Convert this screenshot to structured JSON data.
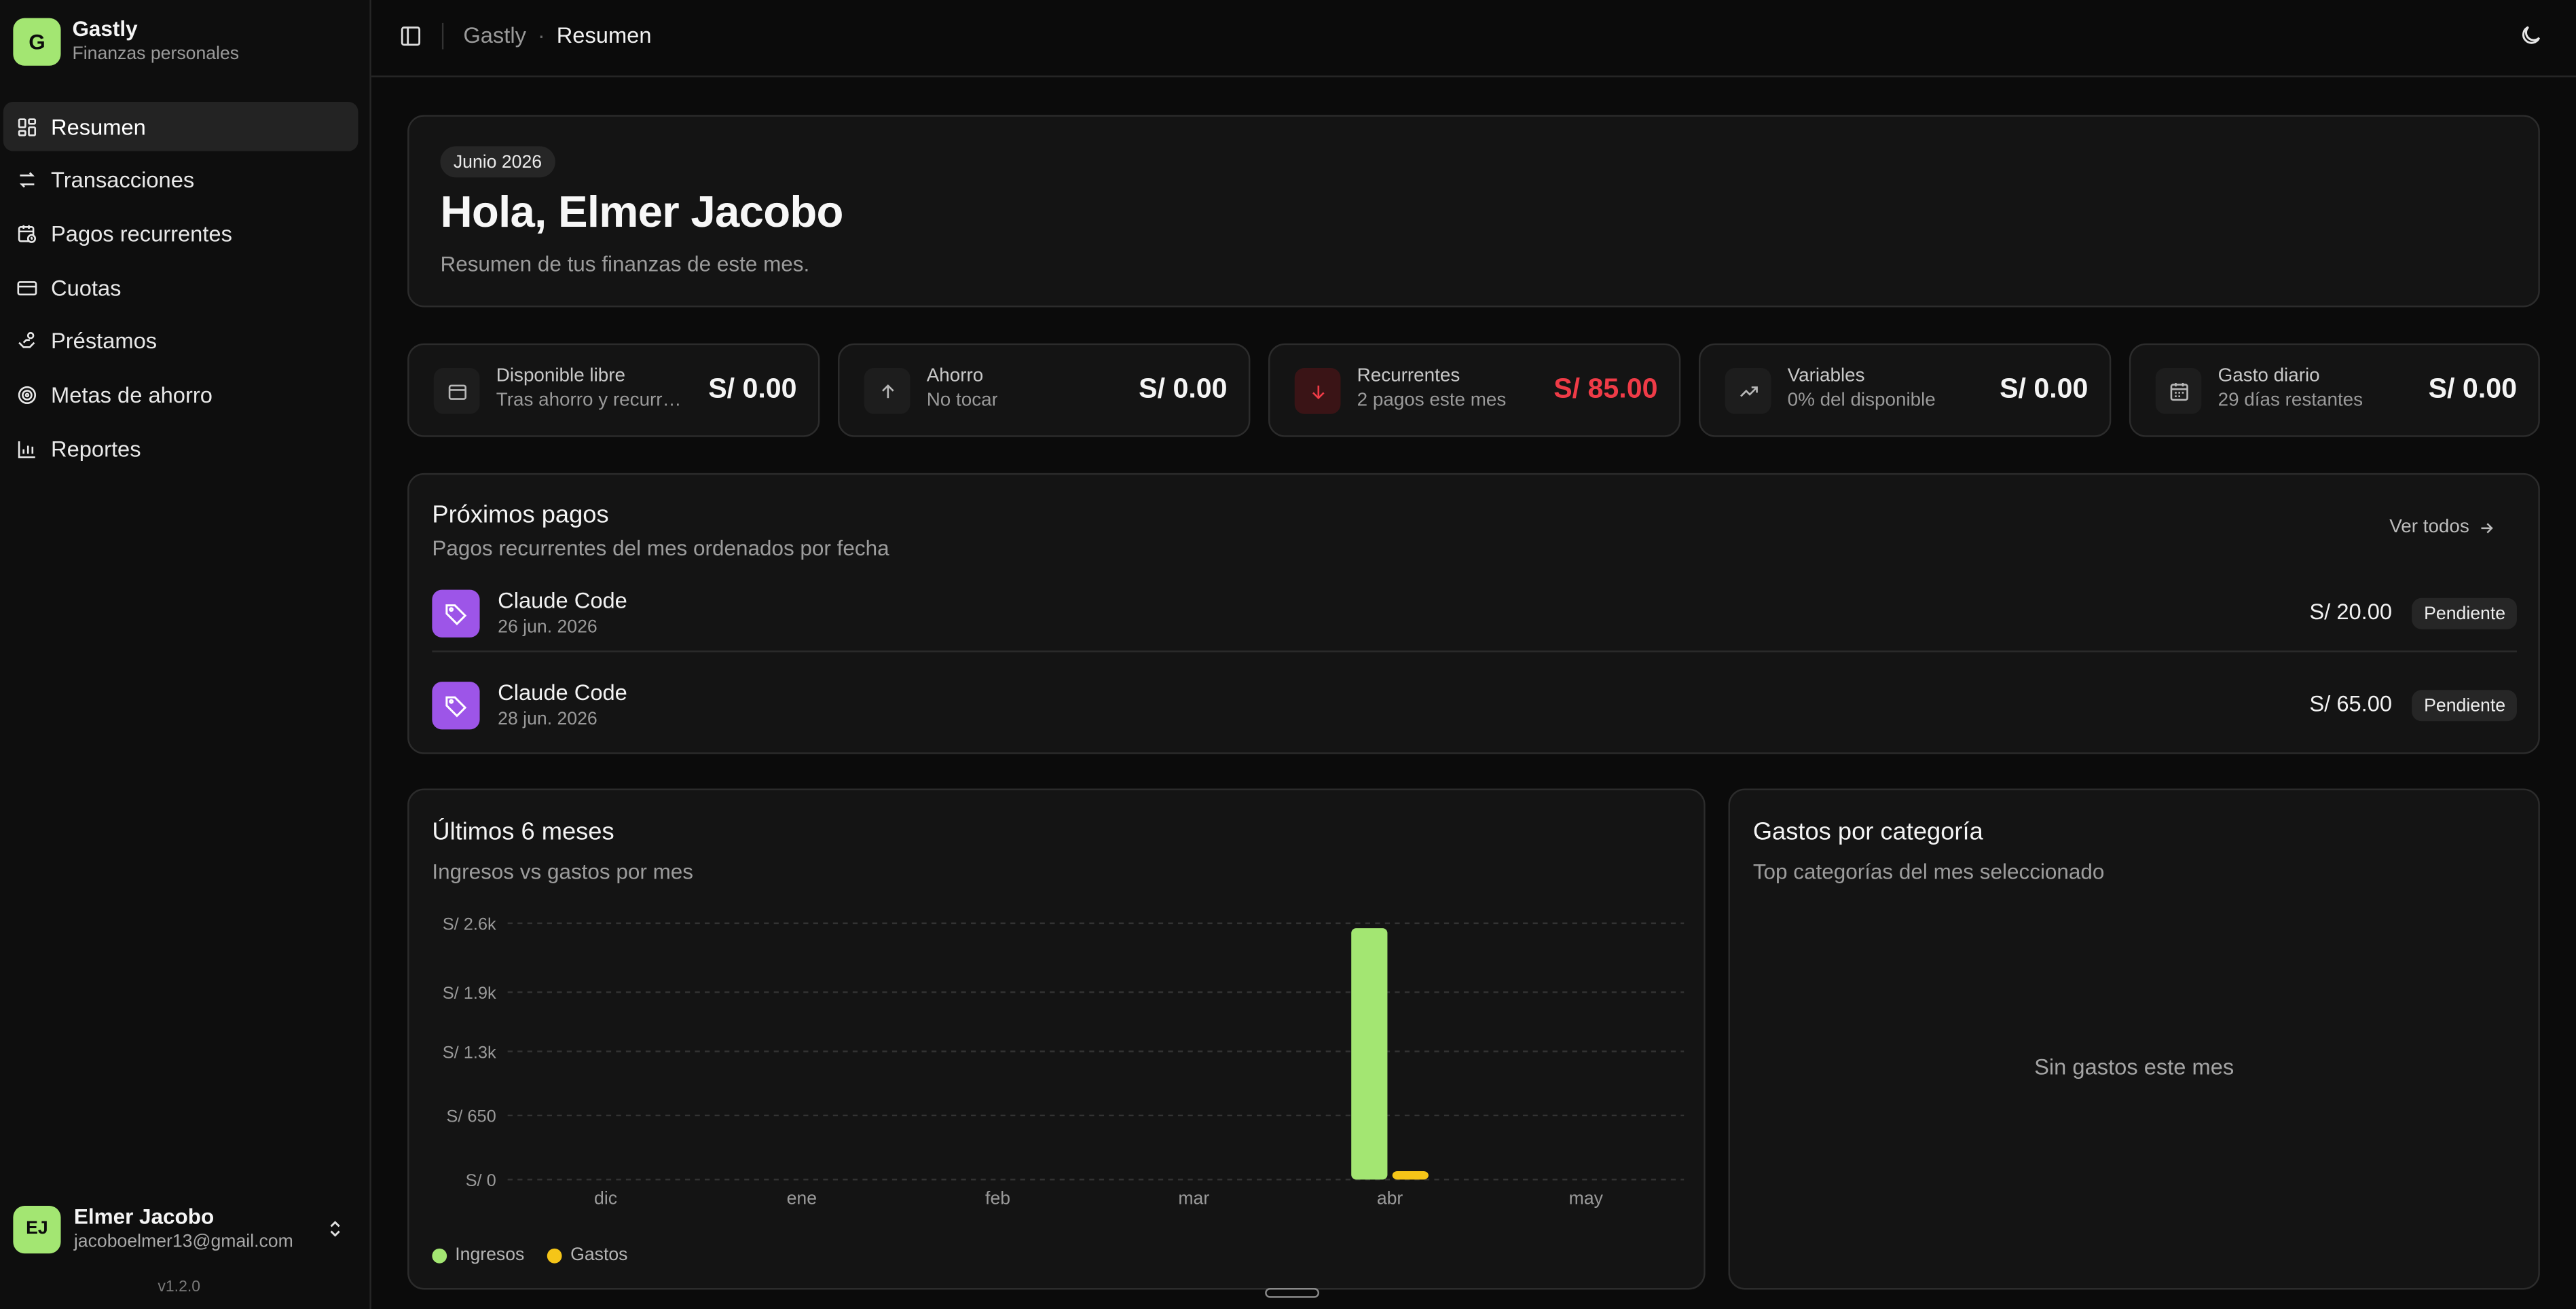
{
  "brand": {
    "initial": "G",
    "name": "Gastly",
    "subtitle": "Finanzas personales"
  },
  "nav": [
    {
      "label": "Resumen",
      "icon": "dashboard-icon",
      "active": true
    },
    {
      "label": "Transacciones",
      "icon": "arrows-swap-icon"
    },
    {
      "label": "Pagos recurrentes",
      "icon": "calendar-clock-icon"
    },
    {
      "label": "Cuotas",
      "icon": "credit-card-icon"
    },
    {
      "label": "Préstamos",
      "icon": "hand-coins-icon"
    },
    {
      "label": "Metas de ahorro",
      "icon": "target-icon"
    },
    {
      "label": "Reportes",
      "icon": "bar-chart-icon"
    }
  ],
  "user": {
    "initials": "EJ",
    "name": "Elmer Jacobo",
    "email": "jacoboelmer13@gmail.com"
  },
  "version": "v1.2.0",
  "breadcrumb": {
    "root": "Gastly",
    "separator": "·",
    "current": "Resumen"
  },
  "hero": {
    "month": "Junio 2026",
    "greeting": "Hola, Elmer Jacobo",
    "subtitle": "Resumen de tus finanzas de este mes."
  },
  "stats": [
    {
      "label": "Disponible libre",
      "sub": "Tras ahorro y recurrentes",
      "value": "S/ 0.00",
      "icon": "wallet-icon"
    },
    {
      "label": "Ahorro",
      "sub": "No tocar",
      "value": "S/ 0.00",
      "icon": "arrow-up-icon"
    },
    {
      "label": "Recurrentes",
      "sub": "2 pagos este mes",
      "value": "S/ 85.00",
      "icon": "arrow-down-icon",
      "accent": "#ef3b47"
    },
    {
      "label": "Variables",
      "sub": "0% del disponible",
      "value": "S/ 0.00",
      "icon": "trending-up-icon"
    },
    {
      "label": "Gasto diario",
      "sub": "29 días restantes",
      "value": "S/ 0.00",
      "icon": "calendar-icon"
    }
  ],
  "payments": {
    "title": "Próximos pagos",
    "subtitle": "Pagos recurrentes del mes ordenados por fecha",
    "see_all": "Ver todos",
    "items": [
      {
        "name": "Claude Code",
        "date": "26 jun. 2026",
        "amount": "S/ 20.00",
        "status": "Pendiente"
      },
      {
        "name": "Claude Code",
        "date": "28 jun. 2026",
        "amount": "S/ 65.00",
        "status": "Pendiente"
      }
    ]
  },
  "chart_section": {
    "title": "Últimos 6 meses",
    "subtitle": "Ingresos vs gastos por mes"
  },
  "chart_data": {
    "type": "bar",
    "categories": [
      "dic",
      "ene",
      "feb",
      "mar",
      "abr",
      "may"
    ],
    "series": [
      {
        "name": "Ingresos",
        "color": "#a3e672",
        "values": [
          0,
          0,
          0,
          0,
          2550,
          0
        ]
      },
      {
        "name": "Gastos",
        "color": "#f5c518",
        "values": [
          0,
          0,
          0,
          0,
          85,
          0
        ]
      }
    ],
    "yticks": [
      0,
      650,
      1300,
      1900,
      2600
    ],
    "ytick_labels": [
      "S/ 0",
      "S/ 650",
      "S/ 1.3k",
      "S/ 1.9k",
      "S/ 2.6k"
    ],
    "ylim": [
      0,
      2600
    ],
    "grid": true,
    "legend": "bottom-left"
  },
  "categories_section": {
    "title": "Gastos por categoría",
    "subtitle": "Top categorías del mes seleccionado",
    "empty": "Sin gastos este mes"
  },
  "colors": {
    "accent": "#a3e672",
    "danger": "#ef3b47",
    "purple": "#9d55e8",
    "gastos": "#f5c518"
  }
}
